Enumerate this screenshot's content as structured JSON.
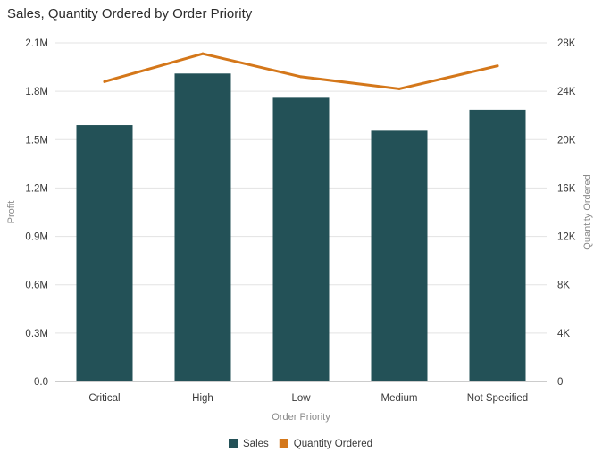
{
  "chart_data": {
    "type": "bar",
    "title": "Sales, Quantity Ordered by Order Priority",
    "xlabel": "Order Priority",
    "ylabel": "Profit",
    "y2label": "Quantity Ordered",
    "categories": [
      "Critical",
      "High",
      "Low",
      "Medium",
      "Not Specified"
    ],
    "ylim": [
      0,
      2100000
    ],
    "y2lim": [
      0,
      28000
    ],
    "yticks": [
      0,
      300000,
      600000,
      900000,
      1200000,
      1500000,
      1800000,
      2100000
    ],
    "ytick_labels": [
      "0.0",
      "0.3M",
      "0.6M",
      "0.9M",
      "1.2M",
      "1.5M",
      "1.8M",
      "2.1M"
    ],
    "y2ticks": [
      0,
      4000,
      8000,
      12000,
      16000,
      20000,
      24000,
      28000
    ],
    "y2tick_labels": [
      "0",
      "4K",
      "8K",
      "12K",
      "16K",
      "20K",
      "24K",
      "28K"
    ],
    "grid": true,
    "legend_position": "bottom",
    "series": [
      {
        "name": "Sales",
        "type": "bar",
        "axis": "left",
        "color": "#235157",
        "values": [
          1590000,
          1910000,
          1760000,
          1555000,
          1685000
        ]
      },
      {
        "name": "Quantity Ordered",
        "type": "line",
        "axis": "right",
        "color": "#d4771a",
        "values": [
          24800,
          27100,
          25200,
          24200,
          26100
        ]
      }
    ]
  }
}
